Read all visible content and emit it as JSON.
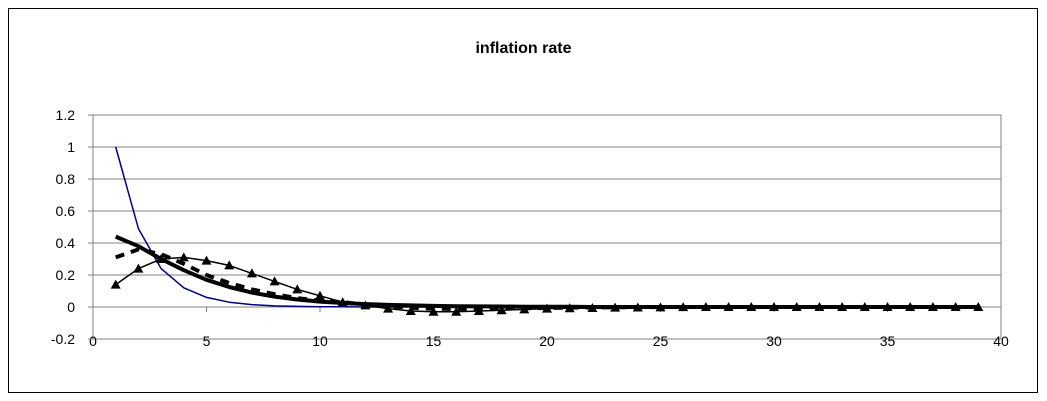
{
  "chart_data": {
    "type": "line",
    "title": "inflation rate",
    "xlabel": "",
    "ylabel": "",
    "xlim": [
      0,
      40
    ],
    "ylim": [
      -0.2,
      1.2
    ],
    "x_ticks": [
      0,
      5,
      10,
      15,
      20,
      25,
      30,
      35,
      40
    ],
    "y_ticks": [
      -0.2,
      0,
      0.2,
      0.4,
      0.6,
      0.8,
      1,
      1.2
    ],
    "x_tick_labels": [
      "0",
      "5",
      "10",
      "15",
      "20",
      "25",
      "30",
      "35",
      "40"
    ],
    "y_tick_labels": [
      "-0.2",
      "0",
      "0.2",
      "0.4",
      "0.6",
      "0.8",
      "1",
      "1.2"
    ],
    "grid": "horizontal",
    "legend": "none",
    "x": [
      1,
      2,
      3,
      4,
      5,
      6,
      7,
      8,
      9,
      10,
      11,
      12,
      13,
      14,
      15,
      16,
      17,
      18,
      19,
      20,
      21,
      22,
      23,
      24,
      25,
      26,
      27,
      28,
      29,
      30,
      31,
      32,
      33,
      34,
      35,
      36,
      37,
      38,
      39
    ],
    "series": [
      {
        "style": "thin-line",
        "color": "#000080",
        "values": [
          1.0,
          0.49,
          0.24,
          0.12,
          0.06,
          0.03,
          0.015,
          0.007,
          0.004,
          0.002,
          0.001,
          0,
          0,
          0,
          0,
          0,
          0,
          0,
          0,
          0,
          0,
          0,
          0,
          0,
          0,
          0,
          0,
          0,
          0,
          0,
          0,
          0,
          0,
          0,
          0,
          0,
          0,
          0,
          0
        ]
      },
      {
        "style": "thick-line",
        "color": "#000000",
        "values": [
          0.44,
          0.38,
          0.3,
          0.23,
          0.17,
          0.125,
          0.09,
          0.065,
          0.047,
          0.034,
          0.025,
          0.018,
          0.013,
          0.01,
          0.007,
          0.005,
          0.004,
          0.003,
          0.002,
          0.001,
          0.001,
          0,
          0,
          0,
          0,
          0,
          0,
          0,
          0,
          0,
          0,
          0,
          0,
          0,
          0,
          0,
          0,
          0,
          0
        ]
      },
      {
        "style": "thick-dashed-line",
        "color": "#000000",
        "values": [
          0.31,
          0.36,
          0.33,
          0.27,
          0.2,
          0.15,
          0.11,
          0.08,
          0.055,
          0.04,
          0.03,
          0.015,
          0.005,
          -0.005,
          -0.01,
          -0.012,
          -0.012,
          -0.01,
          -0.008,
          -0.006,
          -0.004,
          -0.003,
          -0.002,
          -0.001,
          0,
          0,
          0,
          0,
          0,
          0,
          0,
          0,
          0,
          0,
          0,
          0,
          0,
          0,
          0
        ]
      },
      {
        "style": "line-with-triangles",
        "color": "#000000",
        "values": [
          0.14,
          0.24,
          0.3,
          0.31,
          0.29,
          0.26,
          0.21,
          0.16,
          0.11,
          0.07,
          0.03,
          0.01,
          -0.01,
          -0.025,
          -0.03,
          -0.03,
          -0.025,
          -0.02,
          -0.015,
          -0.01,
          -0.008,
          -0.006,
          -0.004,
          -0.003,
          -0.002,
          -0.001,
          0,
          0,
          0,
          0,
          0,
          0,
          0,
          0,
          0,
          0,
          0,
          0,
          0
        ]
      }
    ]
  }
}
